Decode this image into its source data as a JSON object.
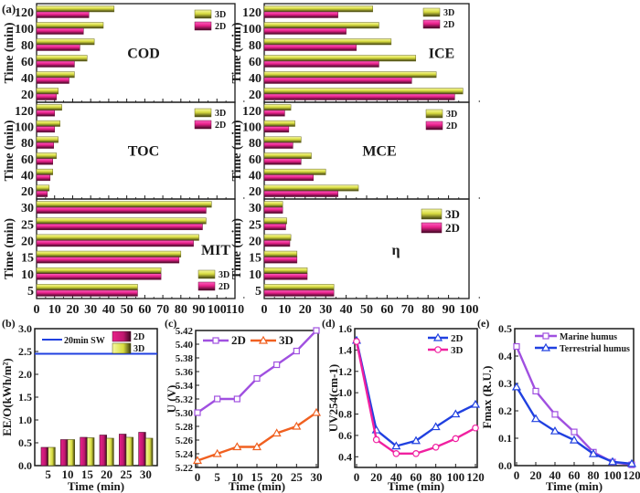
{
  "figure": {
    "panel_labels": [
      "(a)",
      "(b)",
      "(c)",
      "(d)",
      "(e)"
    ]
  },
  "colors": {
    "series_3d": "#d8dc4a",
    "series_2d": "#e8208a",
    "dark": "#1a1a1a",
    "blue": "#2040e0",
    "purple": "#a050e0",
    "orange": "#f06020",
    "pink": "#f020a0"
  },
  "chart_data": [
    {
      "id": "COD",
      "panel": "(a)",
      "type": "bar",
      "orientation": "horizontal",
      "title": "COD",
      "ylabel": "Time (min)",
      "xlabel": "",
      "categories": [
        "20",
        "40",
        "60",
        "80",
        "100",
        "120"
      ],
      "xlim": [
        0,
        110
      ],
      "series": [
        {
          "name": "3D",
          "values": [
            12,
            21,
            28,
            32,
            37,
            43
          ]
        },
        {
          "name": "2D",
          "values": [
            11,
            18,
            21,
            24,
            26,
            29
          ]
        }
      ],
      "legend": [
        "3D",
        "2D"
      ],
      "legend_position": "top-right"
    },
    {
      "id": "TOC",
      "panel": "(a)",
      "type": "bar",
      "orientation": "horizontal",
      "title": "TOC",
      "ylabel": "Time (min)",
      "xlabel": "",
      "categories": [
        "20",
        "40",
        "60",
        "80",
        "100",
        "120"
      ],
      "xlim": [
        0,
        110
      ],
      "series": [
        {
          "name": "3D",
          "values": [
            7,
            9,
            11,
            12,
            13,
            14
          ]
        },
        {
          "name": "2D",
          "values": [
            6,
            7.5,
            9,
            9.5,
            10,
            10
          ]
        }
      ],
      "legend": [
        "3D",
        "2D"
      ],
      "legend_position": "top-right"
    },
    {
      "id": "MIT",
      "panel": "(a)",
      "type": "bar",
      "orientation": "horizontal",
      "title": "MIT",
      "ylabel": "Time (min)",
      "xlabel": "",
      "categories": [
        "5",
        "10",
        "15",
        "20",
        "25",
        "30"
      ],
      "xlim": [
        0,
        110
      ],
      "xticks": [
        "0",
        "10",
        "20",
        "30",
        "40",
        "50",
        "60",
        "70",
        "80",
        "90",
        "100",
        "110"
      ],
      "series": [
        {
          "name": "3D",
          "values": [
            56,
            69,
            80,
            90,
            94,
            97
          ]
        },
        {
          "name": "2D",
          "values": [
            56,
            69,
            79,
            87,
            92,
            94
          ]
        }
      ],
      "legend": [
        "3D",
        "2D"
      ],
      "legend_position": "bottom-right"
    },
    {
      "id": "ICE",
      "panel": "(a)",
      "type": "bar",
      "orientation": "horizontal",
      "title": "ICE",
      "ylabel": "Time (min)",
      "xlabel": "",
      "categories": [
        "20",
        "40",
        "60",
        "80",
        "100",
        "120"
      ],
      "xlim": [
        0,
        100
      ],
      "series": [
        {
          "name": "3D",
          "values": [
            97,
            84,
            74,
            62,
            56,
            53
          ]
        },
        {
          "name": "2D",
          "values": [
            93,
            72,
            56,
            45,
            40,
            36
          ]
        }
      ],
      "legend": [
        "3D",
        "2D"
      ],
      "legend_position": "top-right"
    },
    {
      "id": "MCE",
      "panel": "(a)",
      "type": "bar",
      "orientation": "horizontal",
      "title": "MCE",
      "ylabel": "Time (min)",
      "xlabel": "",
      "categories": [
        "20",
        "40",
        "60",
        "80",
        "100",
        "120"
      ],
      "xlim": [
        0,
        100
      ],
      "series": [
        {
          "name": "3D",
          "values": [
            46,
            30,
            23,
            18,
            15,
            13
          ]
        },
        {
          "name": "2D",
          "values": [
            36,
            24,
            18,
            14,
            12,
            10
          ]
        }
      ],
      "legend": [
        "3D",
        "2D"
      ],
      "legend_position": "top-right"
    },
    {
      "id": "eta",
      "panel": "(a)",
      "type": "bar",
      "orientation": "horizontal",
      "title": "η",
      "ylabel": "Time (min)",
      "xlabel": "",
      "categories": [
        "5",
        "10",
        "15",
        "20",
        "25",
        "30"
      ],
      "xlim": [
        0,
        100
      ],
      "xticks": [
        "0",
        "10",
        "20",
        "30",
        "40",
        "50",
        "60",
        "70",
        "80",
        "90",
        "100"
      ],
      "series": [
        {
          "name": "3D",
          "values": [
            34,
            21,
            16,
            13,
            11,
            9
          ]
        },
        {
          "name": "2D",
          "values": [
            34,
            21,
            16,
            12.5,
            10.5,
            9
          ]
        }
      ],
      "legend": [
        "3D",
        "2D"
      ],
      "legend_position": "top-right"
    },
    {
      "id": "EEO",
      "panel": "(b)",
      "type": "bar",
      "title": "",
      "xlabel": "Time (min)",
      "ylabel": "EE/O(kWh/m²)",
      "categories": [
        "5",
        "10",
        "15",
        "20",
        "25",
        "30"
      ],
      "ylim": [
        0,
        3.0
      ],
      "yticks": [
        "0.0",
        "0.5",
        "1.0",
        "1.5",
        "2.0",
        "2.5",
        "3.0"
      ],
      "series": [
        {
          "name": "2D",
          "values": [
            0.4,
            0.57,
            0.62,
            0.67,
            0.69,
            0.73
          ]
        },
        {
          "name": "3D",
          "values": [
            0.4,
            0.57,
            0.61,
            0.6,
            0.62,
            0.6
          ]
        }
      ],
      "reference_line": {
        "name": "20min SW",
        "value": 2.45
      },
      "legend": [
        "20min SW",
        "2D",
        "3D"
      ],
      "legend_position": "top"
    },
    {
      "id": "U",
      "panel": "(c)",
      "type": "line",
      "title": "",
      "xlabel": "Time (min)",
      "ylabel": "U (V)",
      "x": [
        0,
        5,
        10,
        15,
        20,
        25,
        30
      ],
      "xlim": [
        0,
        30
      ],
      "ylim": [
        5.22,
        5.42
      ],
      "xticks": [
        "0",
        "5",
        "10",
        "15",
        "20",
        "25",
        "30"
      ],
      "yticks": [
        "5.22",
        "5.24",
        "5.26",
        "5.28",
        "5.30",
        "5.32",
        "5.34",
        "5.36",
        "5.38",
        "5.40",
        "5.42"
      ],
      "series": [
        {
          "name": "2D",
          "marker": "square",
          "values": [
            5.3,
            5.32,
            5.32,
            5.35,
            5.37,
            5.39,
            5.42
          ]
        },
        {
          "name": "3D",
          "marker": "triangle",
          "values": [
            5.23,
            5.24,
            5.25,
            5.25,
            5.27,
            5.28,
            5.3
          ]
        }
      ],
      "legend": [
        "2D",
        "3D"
      ],
      "legend_position": "top"
    },
    {
      "id": "UV254",
      "panel": "(d)",
      "type": "line",
      "title": "",
      "xlabel": "Time (min)",
      "ylabel": "UV254(cm-1)",
      "x": [
        0,
        20,
        40,
        60,
        80,
        100,
        120
      ],
      "xlim": [
        0,
        120
      ],
      "ylim": [
        0.3,
        1.6
      ],
      "xticks": [
        "0",
        "20",
        "40",
        "60",
        "80",
        "100",
        "120"
      ],
      "yticks": [
        "0.4",
        "0.6",
        "0.8",
        "1.0",
        "1.2",
        "1.4",
        "1.6"
      ],
      "series": [
        {
          "name": "2D",
          "marker": "triangle",
          "values": [
            1.49,
            0.65,
            0.5,
            0.55,
            0.68,
            0.8,
            0.89
          ]
        },
        {
          "name": "3D",
          "marker": "circle",
          "values": [
            1.48,
            0.56,
            0.43,
            0.43,
            0.49,
            0.57,
            0.67
          ]
        }
      ],
      "legend": [
        "2D",
        "3D"
      ],
      "legend_position": "top-right"
    },
    {
      "id": "Fmax",
      "panel": "(e)",
      "type": "line",
      "title": "",
      "xlabel": "Time (min)",
      "ylabel": "Fmax (R.U.)",
      "x": [
        0,
        20,
        40,
        60,
        80,
        100,
        120
      ],
      "xlim": [
        0,
        120
      ],
      "ylim": [
        0,
        0.5
      ],
      "xticks": [
        "0",
        "20",
        "40",
        "60",
        "80",
        "100",
        "120"
      ],
      "yticks": [
        "0.0",
        "0.1",
        "0.2",
        "0.3",
        "0.4",
        "0.5"
      ],
      "series": [
        {
          "name": "Marine humus",
          "marker": "square",
          "values": [
            0.435,
            0.272,
            0.187,
            0.123,
            0.049,
            0.013,
            0.003
          ]
        },
        {
          "name": "Terrestrial humus",
          "marker": "triangle",
          "values": [
            0.287,
            0.171,
            0.126,
            0.093,
            0.043,
            0.014,
            0.007
          ]
        }
      ],
      "legend": [
        "Marine humus",
        "Terrestrial humus"
      ],
      "legend_position": "top-right"
    }
  ]
}
